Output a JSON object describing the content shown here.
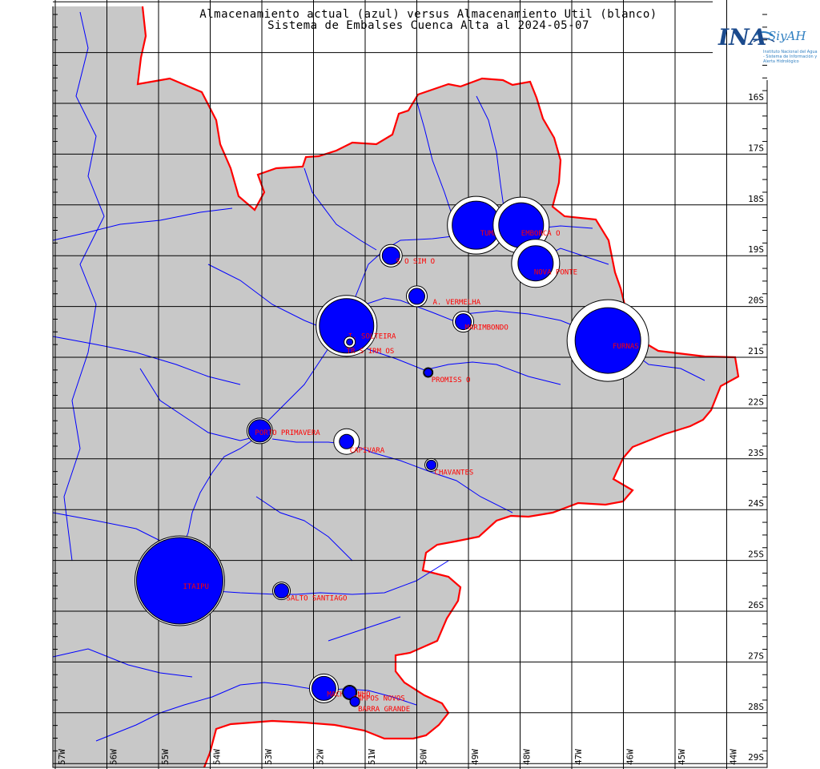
{
  "header": {
    "title_line1": "Almacenamiento actual (azul) versus Almacenamiento Util (blanco)",
    "title_line2": "Sistema de Embalses Cuenca Alta al 2024-05-07"
  },
  "logo": {
    "ina": "INA",
    "siyah": "SiyAH",
    "subtitle": "Instituto Nacional del Agua - Sistema de Información y Alerta Hidrológico"
  },
  "colors": {
    "land": "#c8c8c8",
    "border": "#ff0000",
    "rivers": "#0000ff",
    "grid": "#000000",
    "current_storage": "#0000ff",
    "useful_storage": "#ffffff",
    "labels": "#ff0000"
  },
  "axes": {
    "lon_labels": [
      "57W",
      "56W",
      "55W",
      "54W",
      "53W",
      "52W",
      "51W",
      "50W",
      "49W",
      "48W",
      "47W",
      "46W",
      "45W",
      "44W"
    ],
    "lat_labels": [
      "16S",
      "17S",
      "18S",
      "19S",
      "20S",
      "21S",
      "22S",
      "23S",
      "24S",
      "25S",
      "26S",
      "27S",
      "28S",
      "29S"
    ]
  },
  "reservoirs": [
    {
      "name": "TUMBIARA",
      "lon": -48.85,
      "lat": -18.4,
      "util_size": 36,
      "current_size": 30
    },
    {
      "name": "EMBORCA    O",
      "lon": -47.98,
      "lat": -18.4,
      "util_size": 35,
      "current_size": 28
    },
    {
      "name": "NOVA PONTE",
      "lon": -47.7,
      "lat": -19.15,
      "util_size": 30,
      "current_size": 22
    },
    {
      "name": "S  O SIM  O",
      "lon": -50.5,
      "lat": -19.0,
      "util_size": 14,
      "current_size": 11
    },
    {
      "name": "A. VERMELHA",
      "lon": -50.0,
      "lat": -19.8,
      "util_size": 13,
      "current_size": 10
    },
    {
      "name": "MARIMBONDO",
      "lon": -49.1,
      "lat": -20.3,
      "util_size": 13,
      "current_size": 10
    },
    {
      "name": "FURNAS",
      "lon": -46.3,
      "lat": -20.67,
      "util_size": 51,
      "current_size": 41
    },
    {
      "name": "I. SOLTEIRA",
      "lon": -51.36,
      "lat": -20.38,
      "util_size": 38,
      "current_size": 34
    },
    {
      "name": "TR  S IRM  OS",
      "lon": -51.3,
      "lat": -20.7,
      "util_size": 7,
      "current_size": 4
    },
    {
      "name": "PROMISS  O",
      "lon": -49.78,
      "lat": -21.3,
      "util_size": 6,
      "current_size": 5
    },
    {
      "name": "PORTO PRIMAVERA",
      "lon": -53.04,
      "lat": -22.45,
      "util_size": 16,
      "current_size": 14
    },
    {
      "name": "CAPIVARA",
      "lon": -51.36,
      "lat": -22.66,
      "util_size": 16,
      "current_size": 9
    },
    {
      "name": "CHAVANTES",
      "lon": -49.72,
      "lat": -23.12,
      "util_size": 8,
      "current_size": 6
    },
    {
      "name": "ITAIPU",
      "lon": -54.59,
      "lat": -25.4,
      "util_size": 56,
      "current_size": 54
    },
    {
      "name": "SALTO SANTIAGO",
      "lon": -52.62,
      "lat": -25.6,
      "util_size": 11,
      "current_size": 9
    },
    {
      "name": "MACHADINHO",
      "lon": -51.8,
      "lat": -27.52,
      "util_size": 18,
      "current_size": 15
    },
    {
      "name": "CAMPOS NOVOS",
      "lon": -51.3,
      "lat": -27.6,
      "util_size": 9,
      "current_size": 8
    },
    {
      "name": "BARRA GRANDE",
      "lon": -51.2,
      "lat": -27.78,
      "util_size": 6,
      "current_size": 6
    }
  ]
}
